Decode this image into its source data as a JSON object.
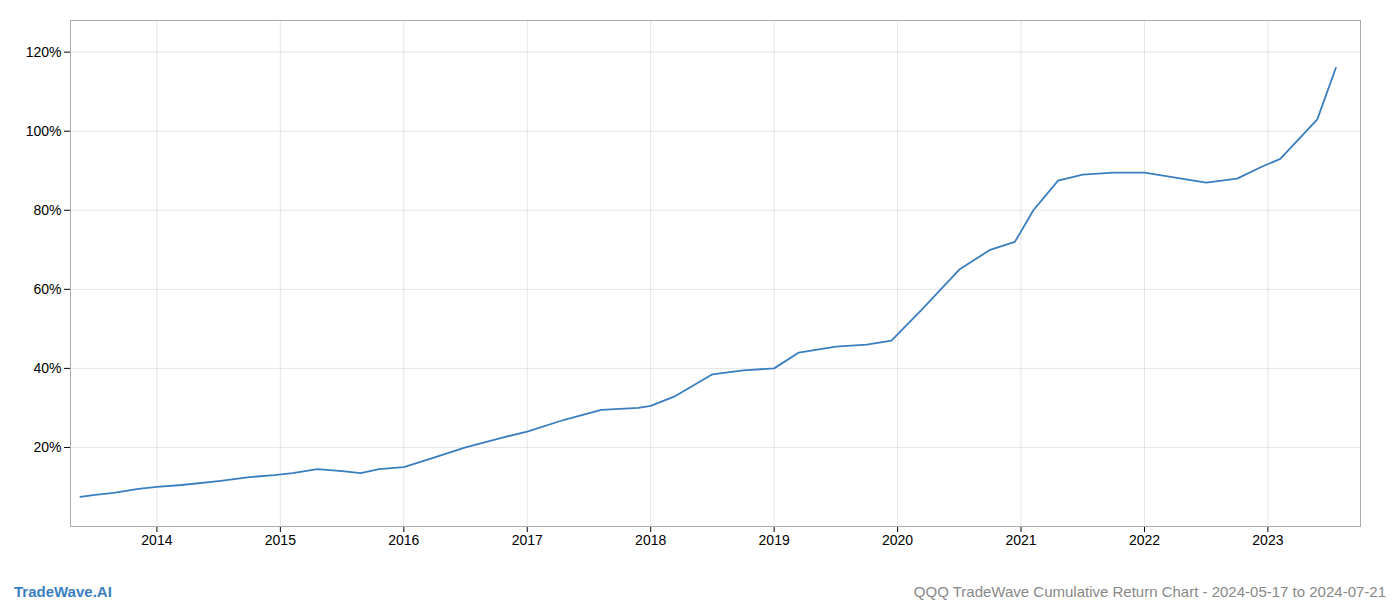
{
  "chart_data": {
    "type": "line",
    "title": "QQQ TradeWave Cumulative Return Chart - 2024-05-17 to 2024-07-21",
    "annotations": [
      "TradeWave.AI"
    ],
    "color": "#3a7ebf",
    "x": [
      2013.38,
      2013.5,
      2013.65,
      2013.85,
      2014.0,
      2014.2,
      2014.5,
      2014.75,
      2014.95,
      2015.1,
      2015.3,
      2015.5,
      2015.65,
      2015.8,
      2016.0,
      2016.2,
      2016.5,
      2016.8,
      2017.0,
      2017.3,
      2017.6,
      2017.9,
      2018.0,
      2018.2,
      2018.5,
      2018.75,
      2019.0,
      2019.2,
      2019.5,
      2019.75,
      2019.95,
      2020.2,
      2020.5,
      2020.75,
      2020.95,
      2021.1,
      2021.3,
      2021.5,
      2021.75,
      2022.0,
      2022.2,
      2022.5,
      2022.75,
      2022.95,
      2023.1,
      2023.4,
      2023.55
    ],
    "values": [
      7.5,
      8.0,
      8.5,
      9.5,
      10.0,
      10.5,
      11.5,
      12.5,
      13.0,
      13.5,
      14.5,
      14.0,
      13.5,
      14.5,
      15.0,
      17.0,
      20.0,
      22.5,
      24.0,
      27.0,
      29.5,
      30.0,
      30.5,
      33.0,
      38.5,
      39.5,
      40.0,
      44.0,
      45.5,
      46.0,
      47.0,
      55.0,
      65.0,
      70.0,
      72.0,
      80.0,
      87.5,
      89.0,
      89.5,
      89.5,
      88.5,
      87.0,
      88.0,
      91.0,
      93.0,
      103.0,
      116.0
    ],
    "xlim": [
      2013.3,
      2023.75
    ],
    "xticks": [
      2014,
      2015,
      2016,
      2017,
      2018,
      2019,
      2020,
      2021,
      2022,
      2023
    ],
    "ylim": [
      0,
      128
    ],
    "yticks": [
      {
        "value": 20,
        "label": "20%"
      },
      {
        "value": 40,
        "label": "40%"
      },
      {
        "value": 60,
        "label": "60%"
      },
      {
        "value": 80,
        "label": "80%"
      },
      {
        "value": 100,
        "label": "100%"
      },
      {
        "value": 120,
        "label": "120%"
      }
    ],
    "grid": true
  }
}
